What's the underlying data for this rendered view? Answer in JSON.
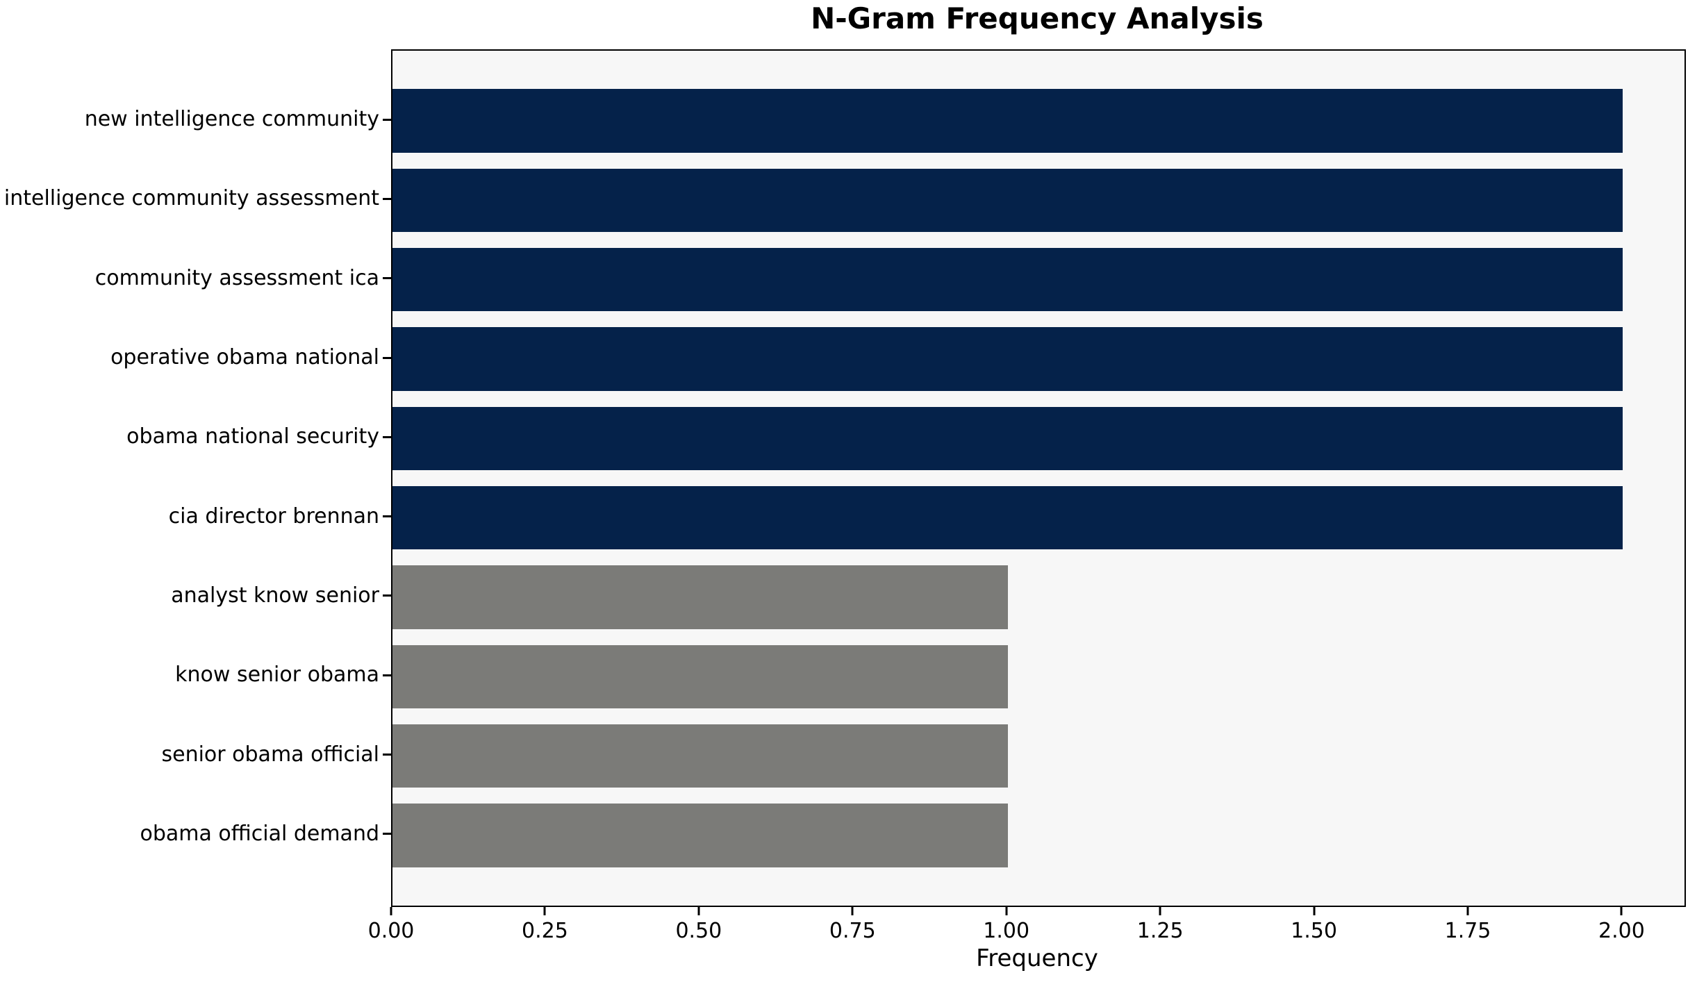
{
  "chart": {
    "title": "N-Gram Frequency Analysis",
    "xlabel": "Frequency"
  },
  "chart_data": {
    "type": "bar",
    "orientation": "horizontal",
    "title": "N-Gram Frequency Analysis",
    "xlabel": "Frequency",
    "ylabel": "",
    "categories": [
      "new intelligence community",
      "intelligence community assessment",
      "community assessment ica",
      "operative obama national",
      "obama national security",
      "cia director brennan",
      "analyst know senior",
      "know senior obama",
      "senior obama official",
      "obama official demand"
    ],
    "values": [
      2,
      2,
      2,
      2,
      2,
      2,
      1,
      1,
      1,
      1
    ],
    "bar_colors": [
      "#05224a",
      "#05224a",
      "#05224a",
      "#05224a",
      "#05224a",
      "#05224a",
      "#7b7b78",
      "#7b7b78",
      "#7b7b78",
      "#7b7b78"
    ],
    "xlim": [
      0,
      2.1
    ],
    "xticks": [
      0,
      0.25,
      0.5,
      0.75,
      1.0,
      1.25,
      1.5,
      1.75,
      2.0
    ],
    "xtick_labels": [
      "0.00",
      "0.25",
      "0.50",
      "0.75",
      "1.00",
      "1.25",
      "1.50",
      "1.75",
      "2.00"
    ],
    "grid": false,
    "legend": false,
    "bar_height_fraction": 0.8,
    "colors": {
      "high_freq_bar": "#05224a",
      "low_freq_bar": "#7b7b78",
      "plot_background": "#f7f7f7",
      "figure_background": "#ffffff",
      "text": "#000000"
    }
  }
}
